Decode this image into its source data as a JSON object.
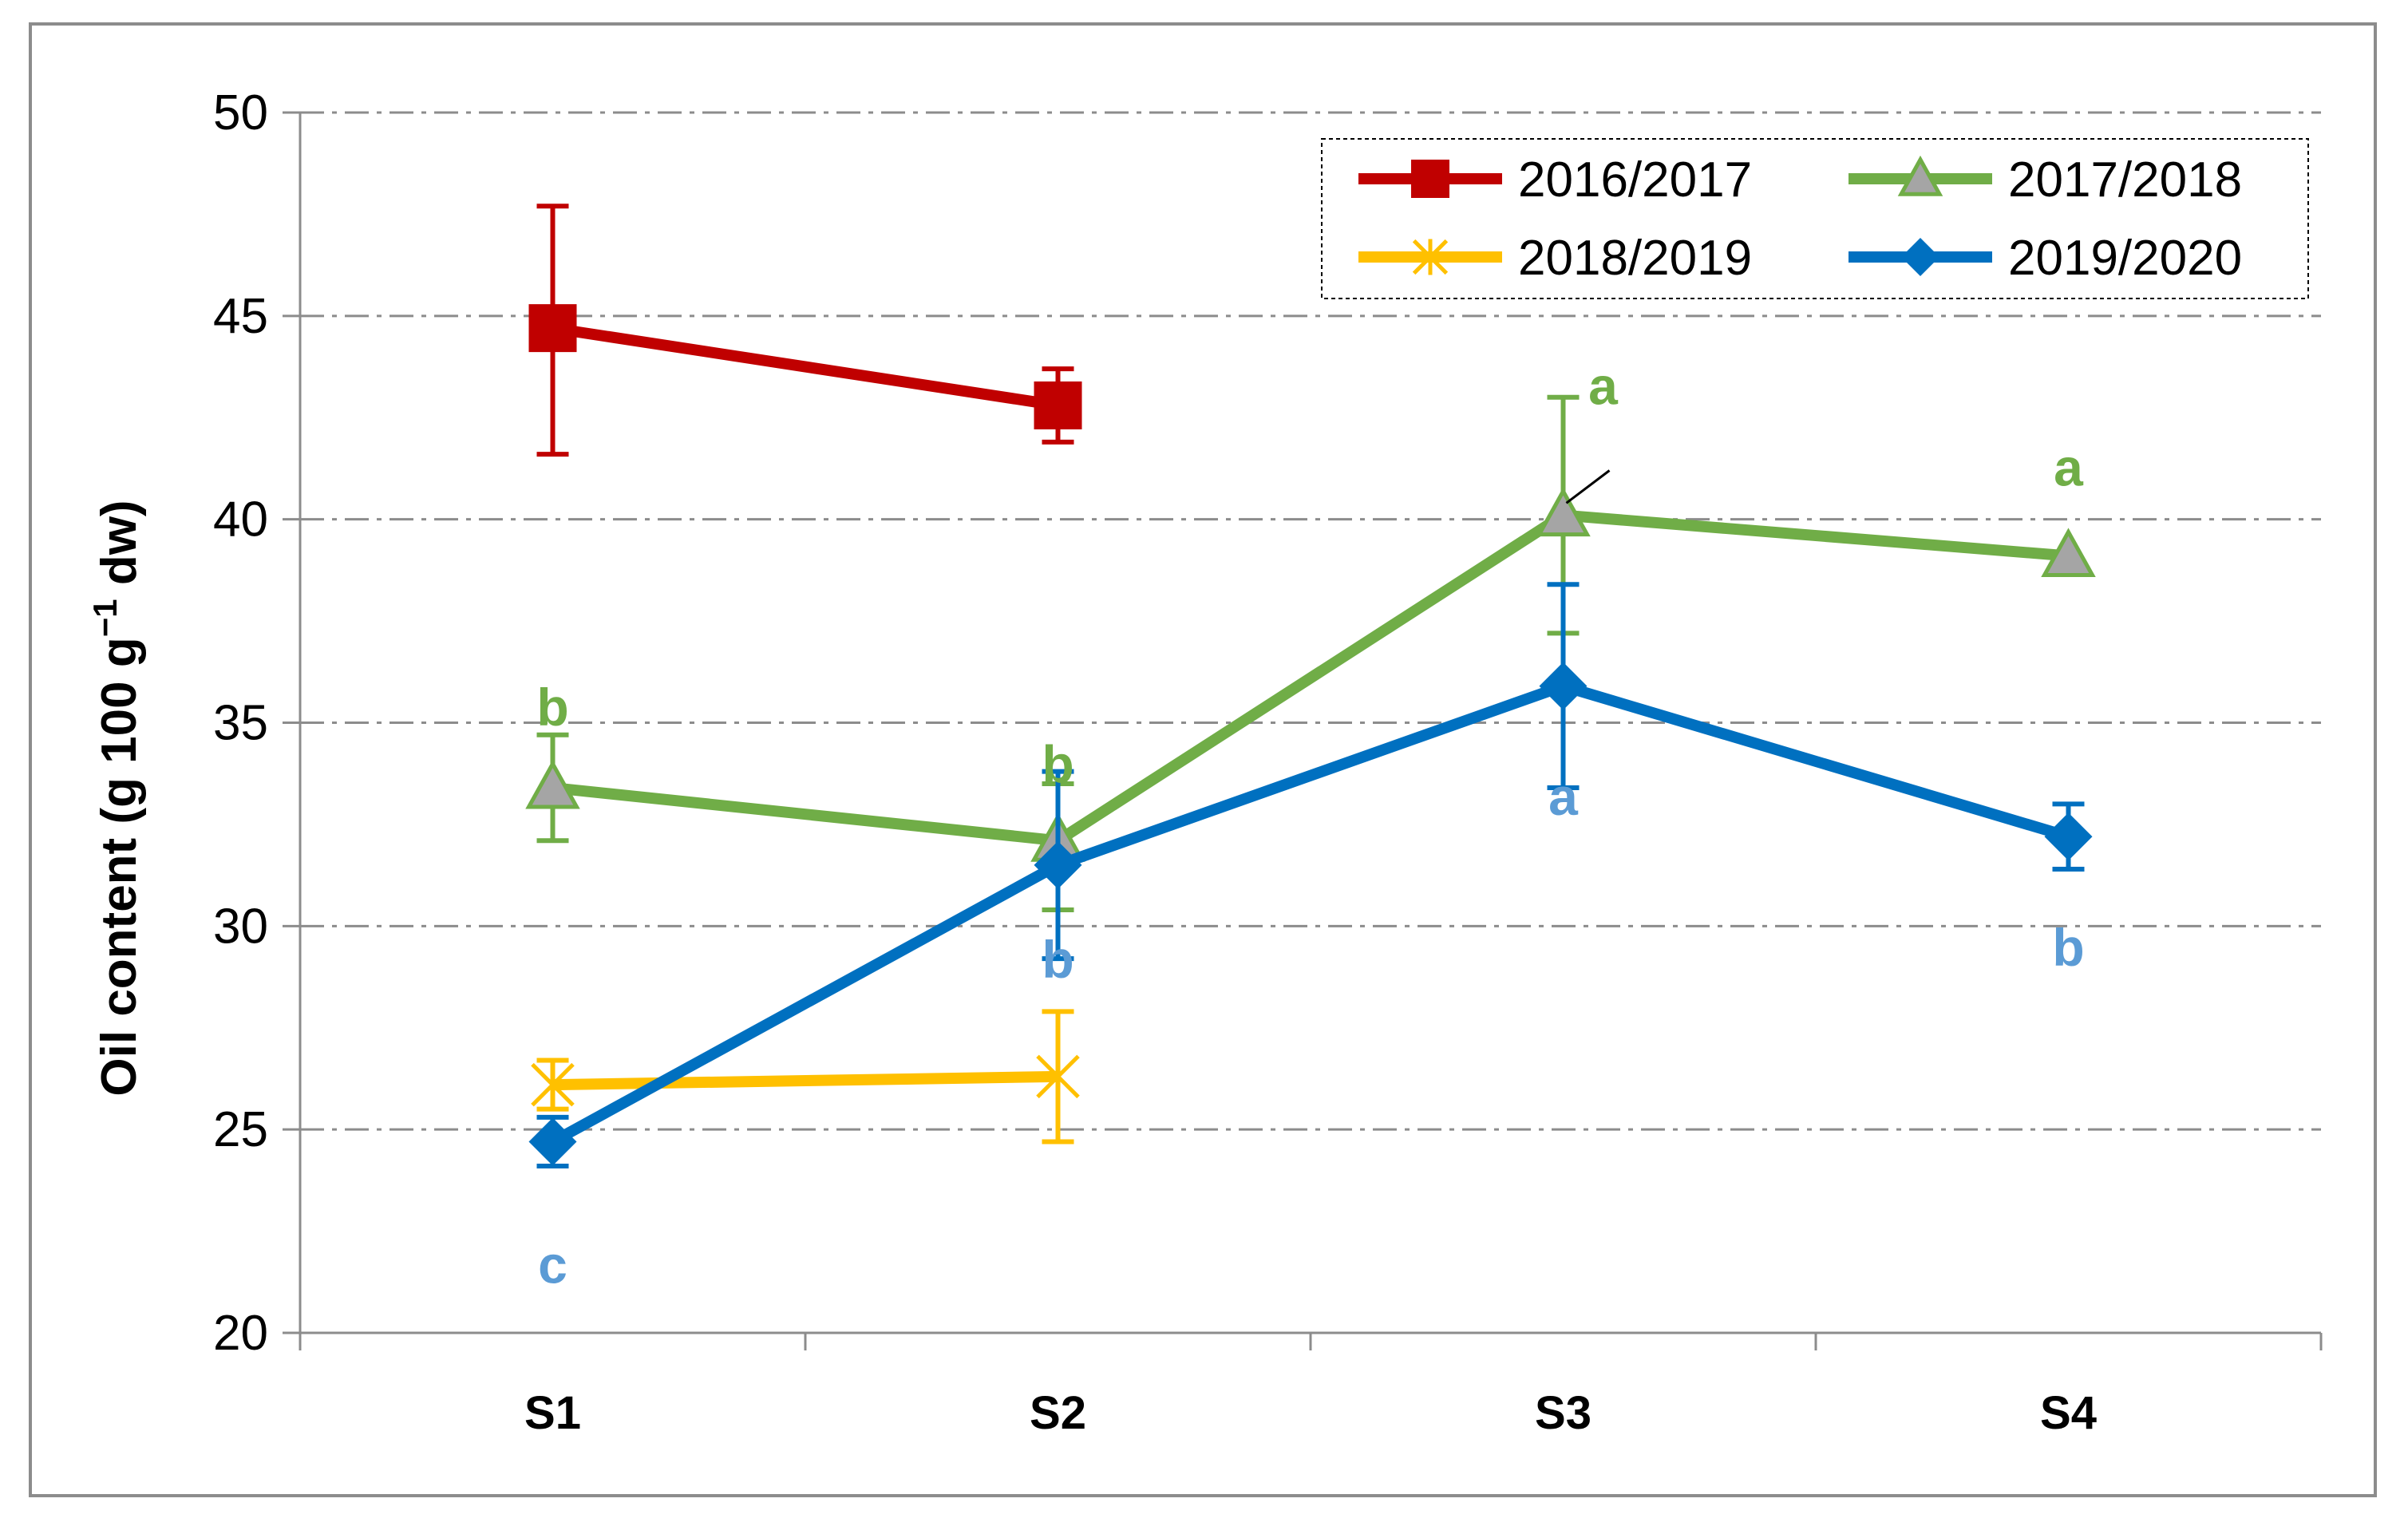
{
  "chart_data": {
    "type": "line",
    "title": "",
    "xlabel": "",
    "ylabel_parts": [
      "Oil content (g 100 g",
      "−1",
      " dw)"
    ],
    "categories": [
      "S1",
      "S2",
      "S3",
      "S4"
    ],
    "ylim": [
      20,
      50
    ],
    "yticks": [
      20,
      25,
      30,
      35,
      40,
      45,
      50
    ],
    "grid": true,
    "legend_position": "top-right",
    "series": [
      {
        "name": "2016/2017",
        "color": "#c00000",
        "marker": "square",
        "values": [
          44.7,
          42.8,
          null,
          null
        ],
        "err_low": [
          41.6,
          41.9,
          null,
          null
        ],
        "err_high": [
          47.7,
          43.7,
          null,
          null
        ],
        "letters": [
          "",
          "",
          "",
          ""
        ],
        "letter_color": "#c00000"
      },
      {
        "name": "2017/2018",
        "color": "#70ad47",
        "marker": "triangle",
        "values": [
          33.4,
          32.1,
          40.1,
          39.1
        ],
        "err_low": [
          32.1,
          30.4,
          37.2,
          39.1
        ],
        "err_high": [
          34.7,
          33.5,
          43.0,
          39.1
        ],
        "letters": [
          "b",
          "b",
          "a",
          "a"
        ],
        "letter_color": "#70ad47"
      },
      {
        "name": "2018/2019",
        "color": "#ffc000",
        "marker": "x",
        "values": [
          26.1,
          26.3,
          null,
          null
        ],
        "err_low": [
          25.5,
          24.7,
          null,
          null
        ],
        "err_high": [
          26.7,
          27.9,
          null,
          null
        ],
        "letters": [
          "",
          "",
          "",
          ""
        ],
        "letter_color": "#ffc000"
      },
      {
        "name": "2019/2020",
        "color": "#0070c0",
        "marker": "diamond",
        "values": [
          24.7,
          31.5,
          35.9,
          32.2
        ],
        "err_low": [
          24.1,
          29.2,
          33.4,
          31.4
        ],
        "err_high": [
          25.3,
          33.8,
          38.4,
          33.0
        ],
        "letters": [
          "c",
          "b",
          "a",
          "b"
        ],
        "letter_color": "#5b9bd5"
      }
    ]
  }
}
